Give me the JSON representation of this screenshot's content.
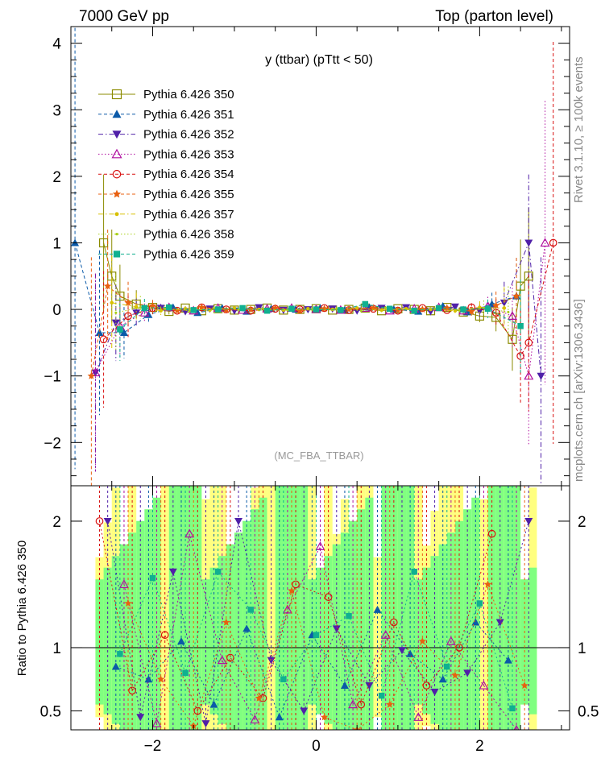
{
  "header": {
    "left_label": "7000 GeV pp",
    "right_label": "Top (parton level)"
  },
  "side_labels": {
    "rivet": "Rivet 3.1.10, ≥ 100k events",
    "mcplots": "mcplots.cern.ch [arXiv:1306.3436]"
  },
  "chart_data": [
    {
      "type": "scatter",
      "panel": "main",
      "title": "y (ttbar) (pTtt < 50)",
      "analysis_tag": "(MC_FBA_TTBAR)",
      "xlabel": "",
      "ylabel": "",
      "xlim": [
        -3.0,
        3.1
      ],
      "ylim": [
        -2.65,
        4.25
      ],
      "x_ticks": [
        -2,
        0,
        2
      ],
      "x_tick_labels": [
        "−2",
        "0",
        "2"
      ],
      "y_ticks": [
        -2,
        -1,
        0,
        1,
        2,
        3,
        4
      ],
      "y_tick_labels": [
        "−2",
        "−1",
        "0",
        "1",
        "2",
        "3",
        "4"
      ],
      "legend_position": "top-left",
      "series": [
        {
          "name": "Pythia 6.426 350",
          "color": "#8b8b00",
          "marker": "open-square",
          "dash": "solid",
          "x": [
            -2.6,
            -2.5,
            -2.4,
            -2.2,
            -2.0,
            -1.8,
            -1.6,
            -1.4,
            -1.2,
            -1.0,
            -0.8,
            -0.6,
            -0.4,
            -0.2,
            0.0,
            0.2,
            0.4,
            0.6,
            0.8,
            1.0,
            1.2,
            1.4,
            1.6,
            1.8,
            2.0,
            2.2,
            2.4,
            2.5,
            2.6
          ],
          "y": [
            1.0,
            0.5,
            0.2,
            0.08,
            0.03,
            -0.03,
            0.02,
            -0.02,
            0.01,
            -0.01,
            0.0,
            0.02,
            -0.01,
            0.0,
            0.01,
            -0.01,
            0.0,
            0.02,
            -0.02,
            0.01,
            0.0,
            -0.02,
            0.03,
            -0.04,
            -0.1,
            -0.12,
            -0.45,
            0.35,
            0.5
          ]
        },
        {
          "name": "Pythia 6.426 351",
          "color": "#0b5aa8",
          "marker": "filled-triangle-up",
          "dash": "dashed",
          "x": [
            -2.95,
            -2.65,
            -2.35,
            -2.05,
            -1.75,
            -1.45,
            -1.15,
            -0.85,
            -0.55,
            -0.25,
            0.05,
            0.35,
            0.65,
            0.95,
            1.25,
            1.55,
            1.85,
            2.15,
            2.45
          ],
          "y": [
            1.0,
            -0.35,
            -0.35,
            -0.08,
            0.03,
            -0.05,
            0.02,
            -0.03,
            0.01,
            0.0,
            0.02,
            -0.01,
            0.03,
            0.0,
            -0.03,
            0.05,
            -0.04,
            0.08,
            0.2
          ]
        },
        {
          "name": "Pythia 6.426 352",
          "color": "#5020a8",
          "marker": "filled-triangle-down",
          "dash": "dashdot",
          "x": [
            -2.7,
            -2.45,
            -2.2,
            -1.9,
            -1.6,
            -1.3,
            -1.0,
            -0.7,
            -0.4,
            -0.1,
            0.2,
            0.5,
            0.8,
            1.1,
            1.4,
            1.7,
            2.0,
            2.3,
            2.6,
            2.75
          ],
          "y": [
            -0.95,
            -0.2,
            -0.05,
            0.02,
            -0.03,
            0.01,
            -0.02,
            0.03,
            -0.01,
            0.0,
            0.01,
            -0.02,
            0.02,
            0.03,
            -0.03,
            0.04,
            -0.02,
            0.1,
            1.0,
            -1.0
          ]
        },
        {
          "name": "Pythia 6.426 353",
          "color": "#b010a0",
          "marker": "open-triangle-up",
          "dash": "dotted",
          "x": [
            -2.7,
            -2.4,
            -2.1,
            -1.8,
            -1.5,
            -1.2,
            -0.9,
            -0.6,
            -0.3,
            0.0,
            0.3,
            0.6,
            0.9,
            1.2,
            1.5,
            1.8,
            2.1,
            2.4,
            2.6,
            2.8
          ],
          "y": [
            -0.95,
            -0.25,
            -0.05,
            0.03,
            -0.02,
            0.02,
            -0.01,
            0.01,
            0.02,
            0.0,
            -0.01,
            0.02,
            -0.02,
            0.01,
            0.03,
            -0.02,
            0.05,
            -0.1,
            -1.0,
            1.0
          ]
        },
        {
          "name": "Pythia 6.426 354",
          "color": "#d81010",
          "marker": "open-circle",
          "dash": "dashed",
          "x": [
            -2.6,
            -2.3,
            -2.0,
            -1.7,
            -1.4,
            -1.1,
            -0.8,
            -0.5,
            -0.2,
            0.1,
            0.4,
            0.7,
            1.0,
            1.3,
            1.6,
            1.9,
            2.2,
            2.5,
            2.6,
            2.9
          ],
          "y": [
            -0.45,
            -0.1,
            0.02,
            -0.02,
            0.03,
            0.0,
            -0.02,
            0.01,
            0.0,
            0.02,
            -0.01,
            0.01,
            -0.02,
            0.02,
            -0.01,
            0.03,
            -0.05,
            -0.7,
            -0.5,
            1.0
          ]
        },
        {
          "name": "Pythia 6.426 355",
          "color": "#e86010",
          "marker": "star",
          "dash": "dashed",
          "x": [
            -2.75,
            -2.55,
            -2.3,
            -2.0,
            -1.7,
            -1.4,
            -1.1,
            -0.8,
            -0.5,
            -0.2,
            0.1,
            0.4,
            0.7,
            1.0,
            1.3,
            1.6,
            1.9,
            2.2,
            2.45
          ],
          "y": [
            -1.0,
            0.35,
            0.1,
            0.05,
            -0.02,
            0.03,
            -0.01,
            0.0,
            0.02,
            -0.02,
            0.01,
            0.0,
            0.02,
            -0.01,
            0.0,
            0.02,
            -0.03,
            0.06,
            0.2
          ]
        },
        {
          "name": "Pythia 6.426 357",
          "color": "#d8c000",
          "marker": "dot",
          "dash": "dashdot",
          "x": [
            -2.5,
            -2.2,
            -1.9,
            -1.6,
            -1.3,
            -1.0,
            -0.7,
            -0.4,
            -0.1,
            0.2,
            0.5,
            0.8,
            1.1,
            1.4,
            1.7,
            2.0,
            2.3
          ],
          "y": [
            0.1,
            0.04,
            -0.02,
            0.01,
            -0.01,
            0.02,
            0.0,
            -0.01,
            0.01,
            0.0,
            0.02,
            -0.01,
            0.01,
            0.0,
            -0.02,
            0.03,
            0.02
          ]
        },
        {
          "name": "Pythia 6.426 358",
          "color": "#a8d018",
          "marker": "small-dot",
          "dash": "dotted",
          "x": [
            -2.45,
            -2.15,
            -1.85,
            -1.55,
            -1.25,
            -0.95,
            -0.65,
            -0.35,
            -0.05,
            0.25,
            0.55,
            0.85,
            1.15,
            1.45,
            1.75,
            2.05,
            2.35
          ],
          "y": [
            -0.05,
            0.03,
            0.01,
            -0.02,
            0.02,
            0.0,
            0.01,
            -0.01,
            0.0,
            0.01,
            -0.02,
            0.02,
            0.0,
            0.01,
            -0.01,
            0.02,
            -0.04
          ]
        },
        {
          "name": "Pythia 6.426 359",
          "color": "#10b090",
          "marker": "filled-square",
          "dash": "dashed",
          "x": [
            -2.4,
            -2.1,
            -1.8,
            -1.5,
            -1.2,
            -0.9,
            -0.6,
            -0.3,
            0.0,
            0.3,
            0.6,
            0.9,
            1.2,
            1.5,
            1.8,
            2.1,
            2.5
          ],
          "y": [
            -0.3,
            0.02,
            0.03,
            -0.01,
            0.0,
            0.02,
            -0.02,
            0.01,
            0.0,
            -0.01,
            0.08,
            0.01,
            -0.02,
            0.02,
            0.0,
            0.01,
            -0.25
          ]
        }
      ]
    },
    {
      "type": "scatter",
      "panel": "ratio",
      "title": "",
      "xlabel": "",
      "ylabel": "Ratio to Pythia 6.426 350",
      "xlim": [
        -3.0,
        3.1
      ],
      "ylim": [
        0.35,
        2.28
      ],
      "x_ticks": [
        -2,
        0,
        2
      ],
      "x_tick_labels": [
        "−2",
        "0",
        "2"
      ],
      "y_ticks": [
        0.5,
        1,
        2
      ],
      "y_tick_labels": [
        "0.5",
        "1",
        "2"
      ],
      "reference_line": 1,
      "band_x_range": [
        -2.7,
        2.7
      ],
      "band_bin_width": 0.1,
      "band_colors": {
        "yellow": "#ffff80",
        "green": "#80ff80"
      },
      "series": [
        {
          "name": "Pythia 6.426 351",
          "color": "#0b5aa8",
          "marker": "filled-triangle-up",
          "x": [
            -2.45,
            -2.05,
            -1.65,
            -1.25,
            -0.85,
            -0.45,
            -0.05,
            0.35,
            0.75,
            1.15,
            1.55,
            1.95,
            2.35
          ],
          "y": [
            0.85,
            0.75,
            1.05,
            0.55,
            1.15,
            0.45,
            1.1,
            0.7,
            1.3,
            0.95,
            0.75,
            1.2,
            0.9
          ]
        },
        {
          "name": "Pythia 6.426 352",
          "color": "#5020a8",
          "marker": "filled-triangle-down",
          "x": [
            -2.55,
            -2.15,
            -1.75,
            -1.35,
            -0.95,
            -0.55,
            -0.15,
            0.25,
            0.65,
            1.05,
            1.45,
            1.85,
            2.25,
            2.6
          ],
          "y": [
            2.0,
            0.45,
            1.6,
            0.4,
            2.0,
            0.9,
            0.5,
            1.15,
            0.7,
            0.98,
            0.65,
            0.8,
            1.2,
            2.0
          ]
        },
        {
          "name": "Pythia 6.426 353",
          "color": "#b010a0",
          "marker": "open-triangle-up",
          "x": [
            -2.35,
            -1.95,
            -1.55,
            -1.15,
            -0.75,
            -0.35,
            0.05,
            0.45,
            0.85,
            1.25,
            1.65,
            2.05,
            2.45
          ],
          "y": [
            1.5,
            0.4,
            1.9,
            0.9,
            0.43,
            1.3,
            1.8,
            0.55,
            1.1,
            0.45,
            1.05,
            0.7,
            0.35
          ]
        },
        {
          "name": "Pythia 6.426 354",
          "color": "#d81010",
          "marker": "open-circle",
          "x": [
            -2.65,
            -2.25,
            -1.85,
            -1.45,
            -1.05,
            -0.65,
            -0.25,
            0.15,
            0.55,
            0.95,
            1.35,
            1.75,
            2.15
          ],
          "y": [
            2.0,
            0.66,
            1.1,
            0.5,
            0.92,
            0.6,
            1.5,
            1.4,
            0.55,
            1.2,
            0.7,
            1.0,
            1.9
          ]
        },
        {
          "name": "Pythia 6.426 355",
          "color": "#e86010",
          "marker": "star",
          "x": [
            -2.3,
            -1.9,
            -1.5,
            -1.1,
            -0.7,
            -0.3,
            0.1,
            0.5,
            0.9,
            1.3,
            1.7,
            2.1,
            2.55
          ],
          "y": [
            1.35,
            0.75,
            0.38,
            1.2,
            0.6,
            1.45,
            0.45,
            0.35,
            0.55,
            1.05,
            0.78,
            1.5,
            0.7
          ]
        },
        {
          "name": "Pythia 6.426 359",
          "color": "#10b090",
          "marker": "filled-square",
          "x": [
            -2.4,
            -2.0,
            -1.6,
            -1.2,
            -0.8,
            -0.4,
            0.0,
            0.4,
            0.8,
            1.2,
            1.6,
            2.0,
            2.4
          ],
          "y": [
            0.95,
            1.55,
            0.8,
            1.6,
            1.3,
            0.75,
            1.1,
            1.25,
            0.62,
            1.6,
            0.85,
            1.35,
            0.52
          ]
        }
      ]
    }
  ]
}
